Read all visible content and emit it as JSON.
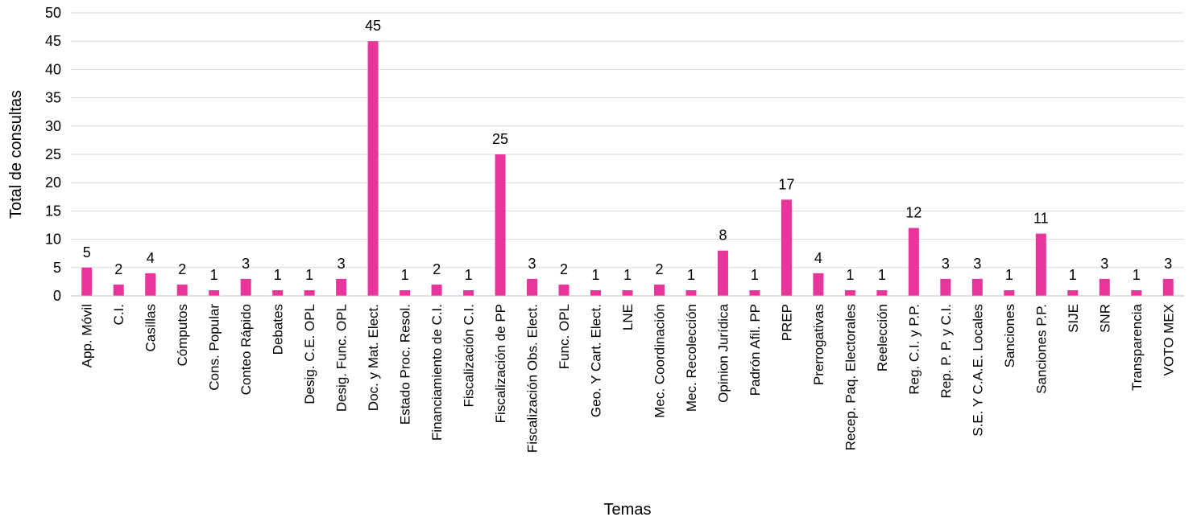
{
  "chart_data": {
    "type": "bar",
    "xlabel": "Temas",
    "ylabel": "Total de consultas",
    "ylim": [
      0,
      50
    ],
    "yticks": [
      0,
      5,
      10,
      15,
      20,
      25,
      30,
      35,
      40,
      45,
      50
    ],
    "grid": true,
    "legend": "none",
    "bar_color": "#e8359b",
    "categories": [
      "App. Móvil",
      "C.I.",
      "Casillas",
      "Cómputos",
      "Cons. Popular",
      "Conteo Rápido",
      "Debates",
      "Desig. C.E. OPL",
      "Desig. Func. OPL",
      "Doc. y Mat. Elect.",
      "Estado Proc. Resol.",
      "Financiamiento de C.I.",
      "Fiscalización C.I.",
      "Fiscalización de PP",
      "Fiscalización Obs. Elect.",
      "Func. OPL",
      "Geo. Y Cart. Elect.",
      "LNE",
      "Mec. Coordinación",
      "Mec. Recolección",
      "Opinion Jurídica",
      "Padrón Afil. PP",
      "PREP",
      "Prerrogativas",
      "Recep. Paq. Electorales",
      "Reelección",
      "Reg. C.I. y P.P.",
      "Rep. P. P. y C.I.",
      "S.E. Y C.A.E. Locales",
      "Sanciones",
      "Sanciones P.P.",
      "SIJE",
      "SNR",
      "Transparencia",
      "VOTO MEX"
    ],
    "values": [
      5,
      2,
      4,
      2,
      1,
      3,
      1,
      1,
      3,
      45,
      1,
      2,
      1,
      25,
      3,
      2,
      1,
      1,
      2,
      1,
      8,
      1,
      17,
      4,
      1,
      1,
      12,
      3,
      3,
      1,
      11,
      1,
      3,
      1,
      3
    ]
  }
}
